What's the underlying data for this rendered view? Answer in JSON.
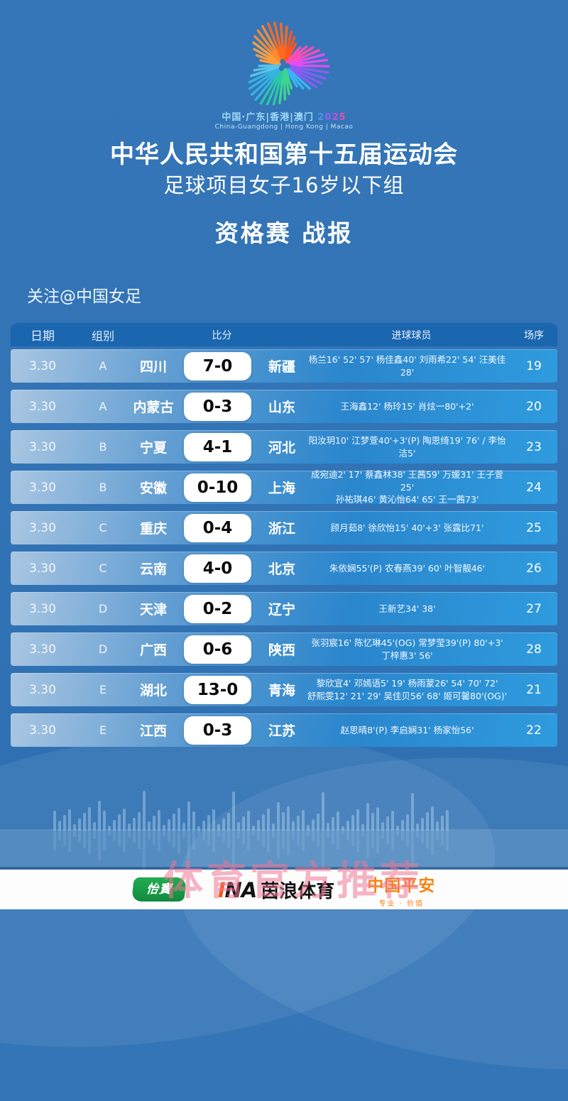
{
  "logo": {
    "cn_line": "中国·广东|香港|澳门",
    "year": "2025",
    "en_line": "China-Guangdong | Hong Kong | Macao"
  },
  "header": {
    "title": "中华人民共和国第十五届运动会",
    "subtitle": "足球项目女子16岁以下组",
    "report_title": "资格赛 战报",
    "follow": "关注@中国女足"
  },
  "colors": {
    "background_blue": "#3173b5",
    "table_header_blue": "#1a66af",
    "row_gradient_right": "#2f9bde",
    "watermark_pink": "#ee7696",
    "pingan_orange": "#f7820e",
    "yibao_green": "#128a3e"
  },
  "table": {
    "columns": {
      "date": "日期",
      "group": "组别",
      "score": "比分",
      "scorers": "进球球员",
      "order": "场序"
    },
    "rows": [
      {
        "date": "3.30",
        "group": "A",
        "home": "四川",
        "score": "7-0",
        "away": "新疆",
        "scorers": "杨兰16' 52' 57' 杨佳鑫40' 刘雨希22' 54' 汪美佳28'",
        "order": "19"
      },
      {
        "date": "3.30",
        "group": "A",
        "home": "内蒙古",
        "score": "0-3",
        "away": "山东",
        "scorers": "王海鑫12' 杨玲15' 肖炫一80'+2'",
        "order": "20"
      },
      {
        "date": "3.30",
        "group": "B",
        "home": "宁夏",
        "score": "4-1",
        "away": "河北",
        "scorers": "阳汝玥10' 江梦萱40'+3'(P) 陶思绮19' 76' / 李怡洁5'",
        "order": "23"
      },
      {
        "date": "3.30",
        "group": "B",
        "home": "安徽",
        "score": "0-10",
        "away": "上海",
        "scorers": "成宛迪2' 17' 蔡鑫林38' 王茜59' 万媛31' 王子萱25'\n孙祐琪46' 黄沁怡64' 65' 王一茜73'",
        "order": "24"
      },
      {
        "date": "3.30",
        "group": "C",
        "home": "重庆",
        "score": "0-4",
        "away": "浙江",
        "scorers": "顾月茹8' 徐欣怡15' 40'+3' 张露比71'",
        "order": "25"
      },
      {
        "date": "3.30",
        "group": "C",
        "home": "云南",
        "score": "4-0",
        "away": "北京",
        "scorers": "朱依娴55'(P) 农春燕39' 60' 叶智靓46'",
        "order": "26"
      },
      {
        "date": "3.30",
        "group": "D",
        "home": "天津",
        "score": "0-2",
        "away": "辽宁",
        "scorers": "王新艺34' 38'",
        "order": "27"
      },
      {
        "date": "3.30",
        "group": "D",
        "home": "广西",
        "score": "0-6",
        "away": "陕西",
        "scorers": "张羽宸16' 陈忆琳45'(OG) 常梦莹39'(P) 80'+3' 丁梓惠3' 56'",
        "order": "28"
      },
      {
        "date": "3.30",
        "group": "E",
        "home": "湖北",
        "score": "13-0",
        "away": "青海",
        "scorers": "黎欣宜4' 邓嫣语5' 19' 杨雨蒙26' 54' 70' 72'\n舒熙雯12' 21' 29' 吴佳贝56' 68' 姬可馨80'(OG)'",
        "order": "21"
      },
      {
        "date": "3.30",
        "group": "E",
        "home": "江西",
        "score": "0-3",
        "away": "江苏",
        "scorers": "赵思晴8'(P) 李启娴31' 杨家怡56'",
        "order": "22"
      }
    ]
  },
  "footer": {
    "watermark": "体育官方推荐",
    "sponsors": [
      {
        "name": "怡宝",
        "label": "怡寶"
      },
      {
        "name": "茵浪体育",
        "prefix": "INA",
        "label": "茵浪体育"
      },
      {
        "name": "中国平安",
        "label": "中国平安",
        "tagline": "专业 · 价值"
      }
    ]
  }
}
